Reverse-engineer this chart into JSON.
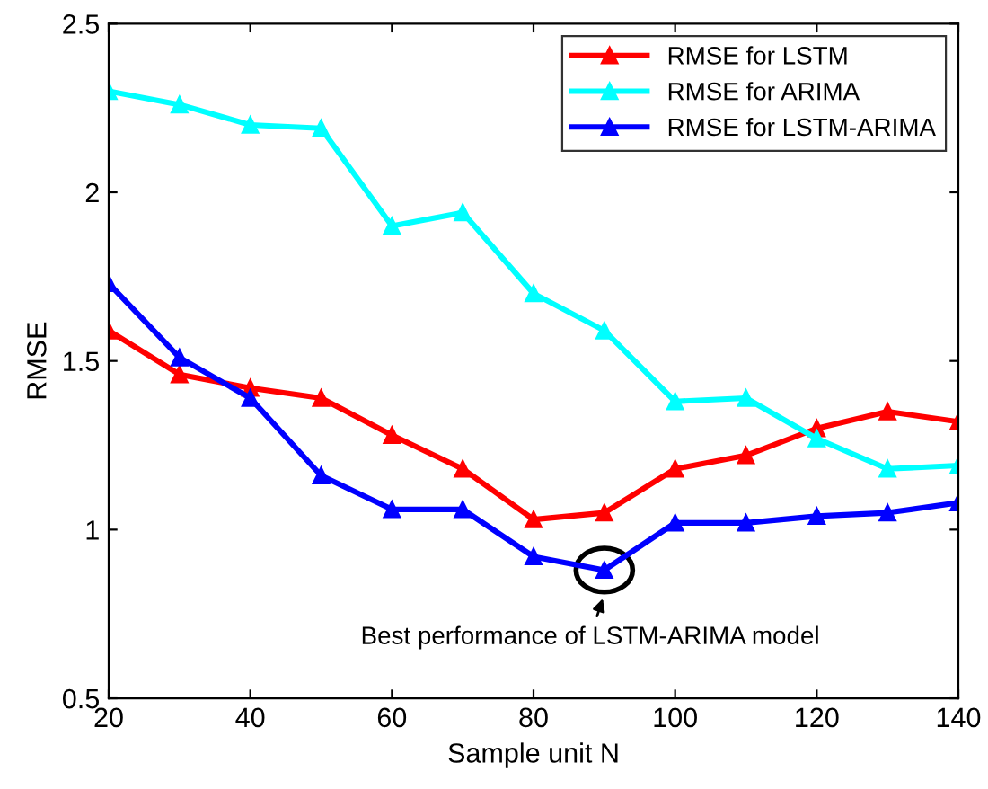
{
  "chart_data": {
    "type": "line",
    "xlabel": "Sample unit N",
    "ylabel": "RMSE",
    "x": [
      20,
      30,
      40,
      50,
      60,
      70,
      80,
      90,
      100,
      110,
      120,
      130,
      140
    ],
    "series": [
      {
        "name": "RMSE for LSTM",
        "color": "#ff0000",
        "values": [
          1.59,
          1.46,
          1.42,
          1.39,
          1.28,
          1.18,
          1.03,
          1.05,
          1.18,
          1.22,
          1.3,
          1.35,
          1.32
        ]
      },
      {
        "name": "RMSE for ARIMA",
        "color": "#00ffff",
        "values": [
          2.3,
          2.26,
          2.2,
          2.19,
          1.9,
          1.94,
          1.7,
          1.59,
          1.38,
          1.39,
          1.27,
          1.18,
          1.19
        ]
      },
      {
        "name": "RMSE for LSTM-ARIMA",
        "color": "#0000ff",
        "values": [
          1.73,
          1.51,
          1.39,
          1.16,
          1.06,
          1.06,
          0.92,
          0.88,
          1.02,
          1.02,
          1.04,
          1.05,
          1.08
        ]
      }
    ],
    "xlim": [
      20,
      140
    ],
    "xticks": [
      20,
      40,
      60,
      80,
      100,
      120,
      140
    ],
    "ylim": [
      0.5,
      2.5
    ],
    "yticks": [
      0.5,
      1,
      1.5,
      2,
      2.5
    ],
    "annotations": [
      {
        "text": "Best performance of LSTM-ARIMA model",
        "x": 90,
        "y": 0.88
      }
    ],
    "marker": "triangle",
    "line_style": "solid",
    "grid": false,
    "legend": "top right"
  }
}
